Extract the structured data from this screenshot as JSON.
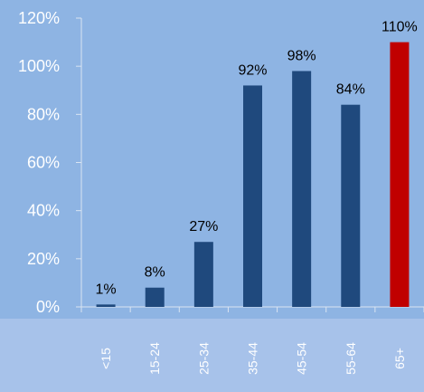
{
  "chart_data": {
    "type": "bar",
    "categories": [
      "<15",
      "15-24",
      "25-34",
      "35-44",
      "45-54",
      "55-64",
      "65+"
    ],
    "values": [
      1,
      8,
      27,
      92,
      98,
      84,
      110
    ],
    "data_labels": [
      "1%",
      "8%",
      "27%",
      "92%",
      "98%",
      "84%",
      "110%"
    ],
    "ylim": [
      0,
      120
    ],
    "yticks": [
      0,
      20,
      40,
      60,
      80,
      100,
      120
    ],
    "ytick_labels": [
      "0%",
      "20%",
      "40%",
      "60%",
      "80%",
      "100%",
      "120%"
    ],
    "title": "",
    "xlabel": "",
    "ylabel": "",
    "grid": false,
    "legend": false,
    "colors": {
      "background": "#8eb4e3",
      "axis_band": "#a7c2ea",
      "bar": "#1f497d",
      "highlight_bar": "#c00000",
      "highlight_category": "65+",
      "axis": "#d9e4f2",
      "tick_text": "#ffffff",
      "label_text": "#000000"
    }
  }
}
